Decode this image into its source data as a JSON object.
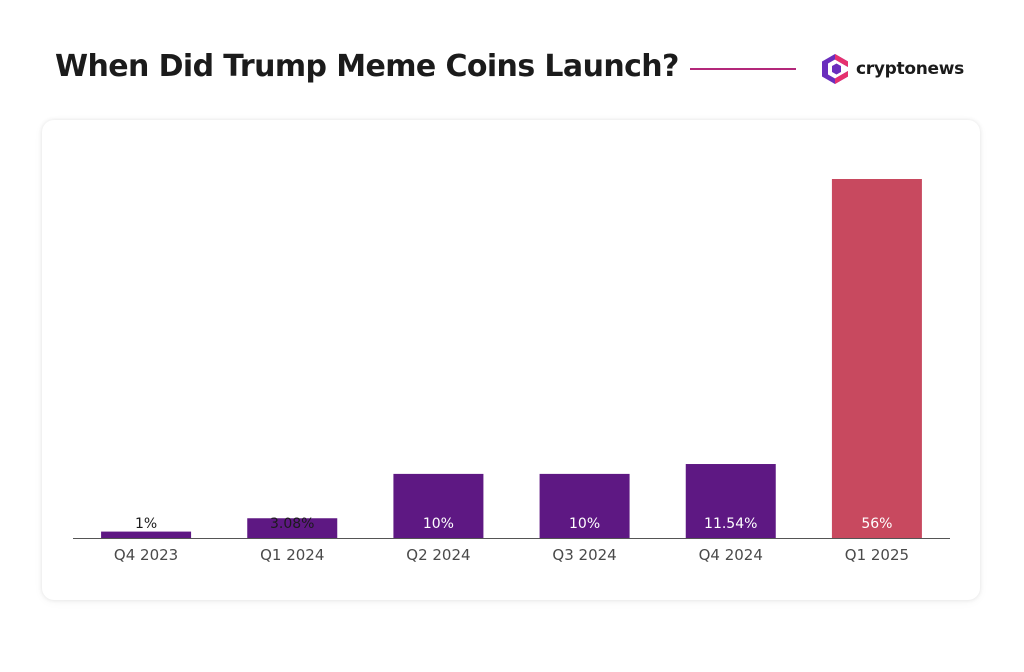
{
  "header": {
    "title": "When Did Trump Meme Coins Launch?",
    "brand_name": "cryptonews",
    "brand_icon": "cryptonews-logo-icon"
  },
  "colors": {
    "primary_bar": "#5e1883",
    "highlight_bar": "#c8495f",
    "title_rule": "#b3287a",
    "axis": "#555555"
  },
  "chart_data": {
    "type": "bar",
    "title": "When Did Trump Meme Coins Launch?",
    "xlabel": "",
    "ylabel": "",
    "categories": [
      "Q4 2023",
      "Q1 2024",
      "Q2 2024",
      "Q3 2024",
      "Q4 2024",
      "Q1 2025"
    ],
    "values": [
      1,
      3.08,
      10,
      10,
      11.54,
      56
    ],
    "value_labels": [
      "1%",
      "3.08%",
      "10%",
      "10%",
      "11.54%",
      "56%"
    ],
    "highlight_index": 5,
    "ylim": [
      0,
      56
    ],
    "grid": false,
    "legend": "none"
  }
}
